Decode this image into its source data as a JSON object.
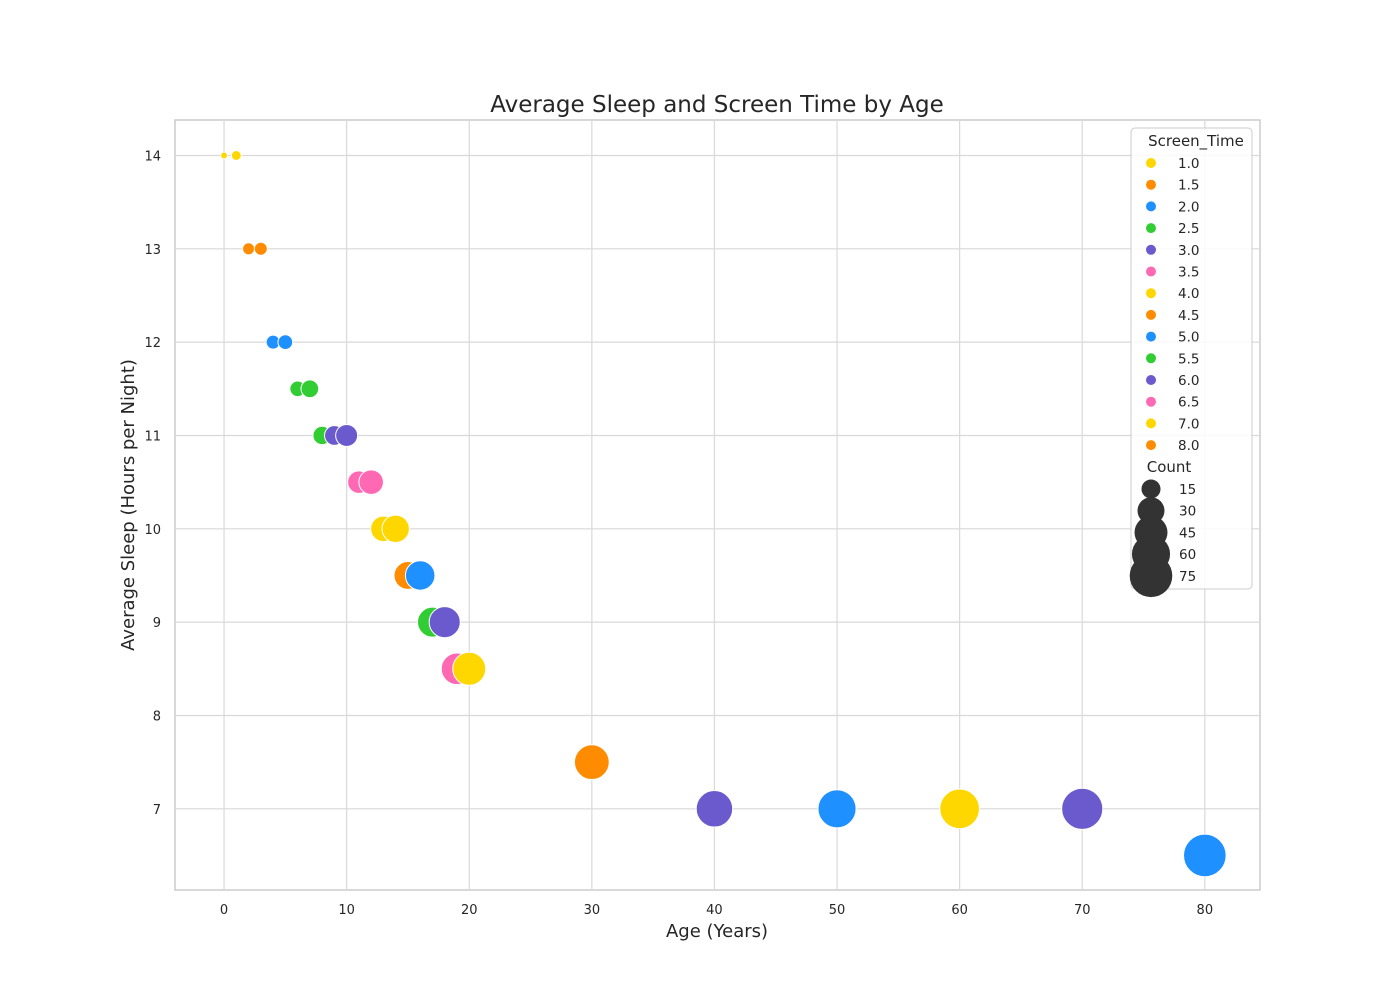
{
  "chart_data": {
    "type": "scatter",
    "title": "Average Sleep and Screen Time by Age",
    "xlabel": "Age (Years)",
    "ylabel": "Average Sleep (Hours per Night)",
    "xlim": [
      -4,
      84.5
    ],
    "ylim": [
      6.13,
      14.38
    ],
    "xticks": [
      0,
      10,
      20,
      30,
      40,
      50,
      60,
      70,
      80
    ],
    "yticks": [
      7,
      8,
      9,
      10,
      11,
      12,
      13,
      14
    ],
    "grid": true,
    "legend_position": "upper-right",
    "legend": {
      "hue_title": "Screen_Time",
      "hue_entries": [
        {
          "label": "1.0",
          "color": "#FFD700"
        },
        {
          "label": "1.5",
          "color": "#FF8C00"
        },
        {
          "label": "2.0",
          "color": "#1E90FF"
        },
        {
          "label": "2.5",
          "color": "#32CD32"
        },
        {
          "label": "3.0",
          "color": "#6A5ACD"
        },
        {
          "label": "3.5",
          "color": "#FF69B4"
        },
        {
          "label": "4.0",
          "color": "#FFD700"
        },
        {
          "label": "4.5",
          "color": "#FF8C00"
        },
        {
          "label": "5.0",
          "color": "#1E90FF"
        },
        {
          "label": "5.5",
          "color": "#32CD32"
        },
        {
          "label": "6.0",
          "color": "#6A5ACD"
        },
        {
          "label": "6.5",
          "color": "#FF69B4"
        },
        {
          "label": "7.0",
          "color": "#FFD700"
        },
        {
          "label": "8.0",
          "color": "#FF8C00"
        }
      ],
      "size_title": "Count",
      "size_entries": [
        {
          "label": "15",
          "value": 15
        },
        {
          "label": "30",
          "value": 30
        },
        {
          "label": "45",
          "value": 45
        },
        {
          "label": "60",
          "value": 60
        },
        {
          "label": "75",
          "value": 75
        }
      ]
    },
    "size_range": [
      0,
      80
    ],
    "points": [
      {
        "x": 0,
        "y": 14,
        "screen_time": "1.0",
        "count": 2
      },
      {
        "x": 1,
        "y": 14,
        "screen_time": "1.0",
        "count": 4
      },
      {
        "x": 2,
        "y": 13,
        "screen_time": "1.5",
        "count": 6
      },
      {
        "x": 3,
        "y": 13,
        "screen_time": "1.5",
        "count": 7
      },
      {
        "x": 4,
        "y": 12,
        "screen_time": "2.0",
        "count": 8
      },
      {
        "x": 5,
        "y": 12,
        "screen_time": "2.0",
        "count": 9
      },
      {
        "x": 6,
        "y": 11.5,
        "screen_time": "2.5",
        "count": 10
      },
      {
        "x": 7,
        "y": 11.5,
        "screen_time": "2.5",
        "count": 13
      },
      {
        "x": 8,
        "y": 11,
        "screen_time": "2.5",
        "count": 14
      },
      {
        "x": 9,
        "y": 11,
        "screen_time": "3.0",
        "count": 16
      },
      {
        "x": 10,
        "y": 11,
        "screen_time": "3.0",
        "count": 20
      },
      {
        "x": 11,
        "y": 10.5,
        "screen_time": "3.5",
        "count": 21
      },
      {
        "x": 12,
        "y": 10.5,
        "screen_time": "3.5",
        "count": 25
      },
      {
        "x": 13,
        "y": 10,
        "screen_time": "4.0",
        "count": 27
      },
      {
        "x": 14,
        "y": 10,
        "screen_time": "4.0",
        "count": 31
      },
      {
        "x": 15,
        "y": 9.5,
        "screen_time": "4.5",
        "count": 32
      },
      {
        "x": 16,
        "y": 9.5,
        "screen_time": "5.0",
        "count": 36
      },
      {
        "x": 17,
        "y": 9,
        "screen_time": "5.5",
        "count": 37
      },
      {
        "x": 18,
        "y": 9,
        "screen_time": "6.0",
        "count": 40
      },
      {
        "x": 19,
        "y": 8.5,
        "screen_time": "6.5",
        "count": 41
      },
      {
        "x": 20,
        "y": 8.5,
        "screen_time": "7.0",
        "count": 45
      },
      {
        "x": 30,
        "y": 7.5,
        "screen_time": "4.5",
        "count": 50
      },
      {
        "x": 40,
        "y": 7,
        "screen_time": "3.0",
        "count": 55
      },
      {
        "x": 50,
        "y": 7,
        "screen_time": "2.0",
        "count": 60
      },
      {
        "x": 60,
        "y": 7,
        "screen_time": "1.0",
        "count": 65
      },
      {
        "x": 70,
        "y": 7,
        "screen_time": "6.0",
        "count": 70
      },
      {
        "x": 80,
        "y": 6.5,
        "screen_time": "5.0",
        "count": 75
      }
    ]
  }
}
